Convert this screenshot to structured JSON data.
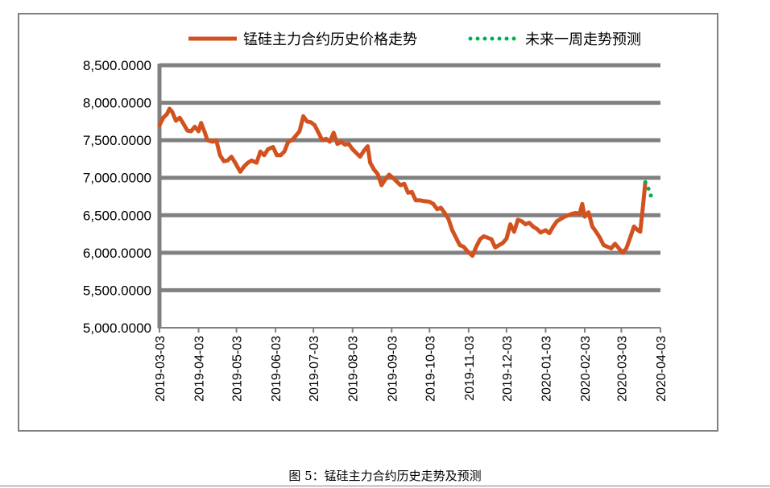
{
  "chart_data": {
    "type": "line",
    "title": "",
    "xlabel": "",
    "ylabel": "",
    "ylim": [
      5000,
      8500
    ],
    "y_ticks": [
      "5,000.0000",
      "5,500.0000",
      "6,000.0000",
      "6,500.0000",
      "7,000.0000",
      "7,500.0000",
      "8,000.0000",
      "8,500.0000"
    ],
    "y_tick_values": [
      5000,
      5500,
      6000,
      6500,
      7000,
      7500,
      8000,
      8500
    ],
    "x_ticks": [
      "2019-03-03",
      "2019-04-03",
      "2019-05-03",
      "2019-06-03",
      "2019-07-03",
      "2019-08-03",
      "2019-09-03",
      "2019-10-03",
      "2019-11-03",
      "2019-12-03",
      "2020-01-03",
      "2020-02-03",
      "2020-03-03",
      "2020-04-03"
    ],
    "grid": true,
    "legend_position": "top",
    "series": [
      {
        "name": "锰硅主力合约历史价格走势",
        "color": "#d2521f",
        "style": "solid",
        "points": [
          [
            "2019-03-03",
            7700
          ],
          [
            "2019-03-06",
            7800
          ],
          [
            "2019-03-09",
            7850
          ],
          [
            "2019-03-11",
            7920
          ],
          [
            "2019-03-13",
            7880
          ],
          [
            "2019-03-16",
            7760
          ],
          [
            "2019-03-19",
            7800
          ],
          [
            "2019-03-22",
            7720
          ],
          [
            "2019-03-25",
            7630
          ],
          [
            "2019-03-28",
            7620
          ],
          [
            "2019-03-31",
            7680
          ],
          [
            "2019-04-03",
            7620
          ],
          [
            "2019-04-05",
            7730
          ],
          [
            "2019-04-08",
            7600
          ],
          [
            "2019-04-10",
            7500
          ],
          [
            "2019-04-14",
            7480
          ],
          [
            "2019-04-17",
            7500
          ],
          [
            "2019-04-20",
            7300
          ],
          [
            "2019-04-23",
            7220
          ],
          [
            "2019-04-26",
            7230
          ],
          [
            "2019-04-29",
            7280
          ],
          [
            "2019-05-02",
            7200
          ],
          [
            "2019-05-06",
            7080
          ],
          [
            "2019-05-09",
            7150
          ],
          [
            "2019-05-12",
            7200
          ],
          [
            "2019-05-15",
            7230
          ],
          [
            "2019-05-19",
            7200
          ],
          [
            "2019-05-22",
            7350
          ],
          [
            "2019-05-25",
            7300
          ],
          [
            "2019-05-28",
            7380
          ],
          [
            "2019-06-01",
            7410
          ],
          [
            "2019-06-04",
            7300
          ],
          [
            "2019-06-07",
            7300
          ],
          [
            "2019-06-10",
            7350
          ],
          [
            "2019-06-13",
            7480
          ],
          [
            "2019-06-16",
            7500
          ],
          [
            "2019-06-19",
            7560
          ],
          [
            "2019-06-22",
            7620
          ],
          [
            "2019-06-25",
            7820
          ],
          [
            "2019-06-28",
            7750
          ],
          [
            "2019-07-01",
            7740
          ],
          [
            "2019-07-04",
            7700
          ],
          [
            "2019-07-07",
            7600
          ],
          [
            "2019-07-10",
            7500
          ],
          [
            "2019-07-13",
            7520
          ],
          [
            "2019-07-16",
            7480
          ],
          [
            "2019-07-19",
            7600
          ],
          [
            "2019-07-22",
            7450
          ],
          [
            "2019-07-25",
            7480
          ],
          [
            "2019-07-28",
            7440
          ],
          [
            "2019-07-31",
            7450
          ],
          [
            "2019-08-03",
            7380
          ],
          [
            "2019-08-06",
            7330
          ],
          [
            "2019-08-09",
            7280
          ],
          [
            "2019-08-12",
            7360
          ],
          [
            "2019-08-15",
            7420
          ],
          [
            "2019-08-17",
            7200
          ],
          [
            "2019-08-20",
            7110
          ],
          [
            "2019-08-23",
            7050
          ],
          [
            "2019-08-26",
            6900
          ],
          [
            "2019-08-29",
            6980
          ],
          [
            "2019-09-01",
            7040
          ],
          [
            "2019-09-04",
            7000
          ],
          [
            "2019-09-07",
            6950
          ],
          [
            "2019-09-10",
            6900
          ],
          [
            "2019-09-13",
            6920
          ],
          [
            "2019-09-16",
            6800
          ],
          [
            "2019-09-19",
            6810
          ],
          [
            "2019-09-22",
            6700
          ],
          [
            "2019-09-25",
            6700
          ],
          [
            "2019-09-28",
            6690
          ],
          [
            "2019-10-03",
            6680
          ],
          [
            "2019-10-06",
            6650
          ],
          [
            "2019-10-09",
            6580
          ],
          [
            "2019-10-12",
            6600
          ],
          [
            "2019-10-15",
            6530
          ],
          [
            "2019-10-18",
            6450
          ],
          [
            "2019-10-21",
            6300
          ],
          [
            "2019-10-24",
            6200
          ],
          [
            "2019-10-27",
            6100
          ],
          [
            "2019-10-30",
            6080
          ],
          [
            "2019-11-02",
            6020
          ],
          [
            "2019-11-06",
            5960
          ],
          [
            "2019-11-09",
            6080
          ],
          [
            "2019-11-12",
            6180
          ],
          [
            "2019-11-15",
            6220
          ],
          [
            "2019-11-18",
            6200
          ],
          [
            "2019-11-21",
            6180
          ],
          [
            "2019-11-24",
            6070
          ],
          [
            "2019-11-27",
            6100
          ],
          [
            "2019-11-30",
            6130
          ],
          [
            "2019-12-03",
            6190
          ],
          [
            "2019-12-06",
            6380
          ],
          [
            "2019-12-09",
            6280
          ],
          [
            "2019-12-12",
            6440
          ],
          [
            "2019-12-15",
            6420
          ],
          [
            "2019-12-18",
            6380
          ],
          [
            "2019-12-21",
            6400
          ],
          [
            "2019-12-24",
            6350
          ],
          [
            "2019-12-27",
            6320
          ],
          [
            "2019-12-30",
            6270
          ],
          [
            "2020-01-03",
            6300
          ],
          [
            "2020-01-06",
            6260
          ],
          [
            "2020-01-09",
            6350
          ],
          [
            "2020-01-12",
            6420
          ],
          [
            "2020-01-15",
            6450
          ],
          [
            "2020-01-18",
            6480
          ],
          [
            "2020-01-21",
            6500
          ],
          [
            "2020-01-24",
            6520
          ],
          [
            "2020-01-27",
            6530
          ],
          [
            "2020-01-30",
            6520
          ],
          [
            "2020-02-01",
            6650
          ],
          [
            "2020-02-03",
            6480
          ],
          [
            "2020-02-06",
            6540
          ],
          [
            "2020-02-09",
            6350
          ],
          [
            "2020-02-12",
            6280
          ],
          [
            "2020-02-15",
            6200
          ],
          [
            "2020-02-18",
            6100
          ],
          [
            "2020-02-21",
            6080
          ],
          [
            "2020-02-24",
            6060
          ],
          [
            "2020-02-27",
            6120
          ],
          [
            "2020-03-01",
            6060
          ],
          [
            "2020-03-04",
            6000
          ],
          [
            "2020-03-07",
            6060
          ],
          [
            "2020-03-10",
            6200
          ],
          [
            "2020-03-13",
            6350
          ],
          [
            "2020-03-16",
            6300
          ],
          [
            "2020-03-18",
            6280
          ],
          [
            "2020-03-20",
            6600
          ],
          [
            "2020-03-22",
            6940
          ]
        ]
      },
      {
        "name": "未来一周走势预测",
        "color": "#00b050",
        "style": "dotted",
        "points": [
          [
            "2020-03-22",
            6940
          ],
          [
            "2020-03-24",
            6880
          ],
          [
            "2020-03-26",
            6780
          ],
          [
            "2020-03-28",
            6680
          ]
        ]
      }
    ]
  },
  "caption": "图 5：锰硅主力合约历史走势及预测"
}
